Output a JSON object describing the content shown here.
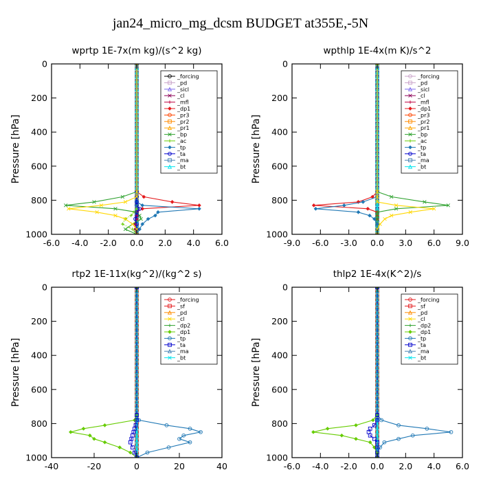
{
  "figure": {
    "title": "jan24_micro_mg_dcsm  BUDGET at355E,-5N"
  },
  "chart_data": [
    {
      "type": "line",
      "title": "wprtp  1E-7x(m kg)/(s^2 kg)",
      "ylabel": "Pressure [hPa]",
      "xlim": [
        -6,
        6
      ],
      "ylim": [
        1000,
        0
      ],
      "xticks": [
        "-6.0",
        "-4.0",
        "-2.0",
        "0.0",
        "2.0",
        "4.0",
        "6.0"
      ],
      "yticks": [
        "0",
        "200",
        "400",
        "600",
        "800",
        "1000"
      ],
      "grid": false,
      "legend_position": "top-right",
      "pressure": [
        750,
        780,
        810,
        830,
        850,
        870,
        890,
        910,
        940,
        970,
        1000
      ],
      "series": [
        {
          "name": "_forcing",
          "color": "#000000",
          "values": [
            0,
            0,
            0,
            0,
            0,
            0,
            0,
            0,
            0,
            0,
            0
          ]
        },
        {
          "name": "_pd",
          "color": "#c8a2c8",
          "values": [
            0,
            0,
            0,
            0,
            0,
            0,
            0,
            0,
            0,
            0,
            0
          ]
        },
        {
          "name": "_sicl",
          "color": "#7b68ee",
          "values": [
            0,
            0,
            0,
            0,
            0,
            0,
            0,
            0,
            0,
            0,
            0
          ]
        },
        {
          "name": "_cl",
          "color": "#8b0057",
          "values": [
            0,
            0,
            0,
            0,
            0,
            0,
            0,
            0,
            0,
            0,
            0
          ]
        },
        {
          "name": "_mfl",
          "color": "#c00040",
          "values": [
            0,
            0,
            0,
            0,
            0,
            0,
            0,
            0,
            0,
            0,
            0
          ]
        },
        {
          "name": "_dp1",
          "color": "#e41a1c",
          "values": [
            0,
            0.5,
            2.5,
            4.4,
            0.4,
            0,
            0,
            0,
            -0.1,
            -0.1,
            0
          ]
        },
        {
          "name": "_pr3",
          "color": "#ff4500",
          "values": [
            0,
            0,
            0,
            0,
            0,
            0,
            0,
            0,
            0,
            0,
            0
          ]
        },
        {
          "name": "_pr2",
          "color": "#ff8c00",
          "values": [
            0,
            0,
            0,
            0,
            0,
            0,
            0,
            0,
            0,
            0,
            0
          ]
        },
        {
          "name": "_pr1",
          "color": "#ffa500",
          "values": [
            0,
            0,
            0,
            0,
            0,
            0,
            0,
            0,
            0,
            0,
            0
          ]
        },
        {
          "name": "_bp",
          "color": "#2ca02c",
          "values": [
            0,
            -1,
            -3,
            -5,
            -1.5,
            0,
            0.2,
            0.3,
            -0.3,
            -0.8,
            0
          ]
        },
        {
          "name": "_ac",
          "color": "#66cc00",
          "values": [
            0,
            0,
            0,
            0,
            0,
            -0.2,
            -0.4,
            -0.8,
            -1,
            -0.3,
            0
          ]
        },
        {
          "name": "_tp",
          "color": "#1f77b4",
          "values": [
            0,
            0,
            0,
            0.4,
            4.4,
            1.5,
            1.3,
            0.8,
            0.4,
            0.2,
            0
          ]
        },
        {
          "name": "_ta",
          "color": "#0000cd",
          "values": [
            0,
            0,
            0,
            0,
            0.2,
            0,
            0,
            -0.1,
            0,
            0,
            0
          ]
        },
        {
          "name": "_ma",
          "color": "#4682b4",
          "values": [
            0,
            0,
            0,
            0,
            0,
            0,
            0,
            0,
            0,
            0,
            0
          ]
        },
        {
          "name": "_bt",
          "color": "#00e5ee",
          "values": [
            0,
            0,
            0,
            0,
            0,
            0,
            0,
            0,
            0,
            0,
            0
          ]
        },
        {
          "name": "",
          "color": "#ffd700",
          "values": [
            0,
            0,
            -0.8,
            -2.5,
            -4.8,
            -2.8,
            -1.5,
            -0.8,
            -0.3,
            0,
            0
          ]
        }
      ]
    },
    {
      "type": "line",
      "title": "wpthlp  1E-4x(m K)/s^2",
      "ylabel": "Pressure [hPa]",
      "xlim": [
        -9,
        9
      ],
      "ylim": [
        1000,
        0
      ],
      "xticks": [
        "-9.0",
        "-6.0",
        "-3.0",
        "0.0",
        "3.0",
        "6.0",
        "9.0"
      ],
      "yticks": [
        "0",
        "200",
        "400",
        "600",
        "800",
        "1000"
      ],
      "grid": false,
      "legend_position": "top-right",
      "pressure": [
        750,
        780,
        810,
        830,
        850,
        870,
        890,
        910,
        940,
        970,
        1000
      ],
      "series": [
        {
          "name": "_forcing",
          "color": "#c8a2c8",
          "values": [
            0,
            0,
            0,
            0,
            0,
            0,
            0,
            0,
            0,
            0,
            0
          ]
        },
        {
          "name": "_pd",
          "color": "#c8a2c8",
          "values": [
            0,
            0,
            0,
            0,
            0,
            0,
            0,
            0,
            0,
            0,
            0
          ]
        },
        {
          "name": "_sicl",
          "color": "#7b68ee",
          "values": [
            0,
            0,
            0,
            0,
            0,
            0,
            0,
            0,
            0,
            0,
            0
          ]
        },
        {
          "name": "_cl",
          "color": "#8b0057",
          "values": [
            0,
            0,
            0,
            0,
            0,
            0,
            0,
            0,
            0,
            0,
            0
          ]
        },
        {
          "name": "_mfl",
          "color": "#c00040",
          "values": [
            0,
            0,
            0,
            0,
            0,
            0,
            0,
            0,
            0,
            0,
            0
          ]
        },
        {
          "name": "_dp1",
          "color": "#e41a1c",
          "values": [
            0,
            -0.5,
            -2,
            -6.7,
            -1,
            0,
            0,
            0,
            0,
            0,
            0
          ]
        },
        {
          "name": "_pr3",
          "color": "#ff4500",
          "values": [
            0,
            0,
            0,
            0,
            0,
            0,
            0,
            0,
            0,
            0,
            0
          ]
        },
        {
          "name": "_pr2",
          "color": "#ff8c00",
          "values": [
            0,
            0,
            0,
            0,
            0,
            0,
            0,
            0,
            0,
            0,
            0
          ]
        },
        {
          "name": "_pr1",
          "color": "#ffa500",
          "values": [
            0,
            0,
            0,
            0,
            0,
            0,
            0,
            0,
            0,
            0,
            0
          ]
        },
        {
          "name": "_bp",
          "color": "#2ca02c",
          "values": [
            0,
            1.5,
            5,
            7.5,
            2,
            0,
            0,
            0,
            0,
            0,
            0
          ]
        },
        {
          "name": "_ac",
          "color": "#66cc00",
          "values": [
            0,
            0,
            0,
            0,
            0,
            0,
            0,
            0,
            0,
            0,
            0
          ]
        },
        {
          "name": "_tp",
          "color": "#1f77b4",
          "values": [
            0,
            0,
            -1.5,
            -3.5,
            -6.5,
            -2,
            -0.8,
            -0.3,
            0,
            0,
            0
          ]
        },
        {
          "name": "_ta",
          "color": "#0000cd",
          "values": [
            0,
            0,
            0,
            0,
            0,
            0,
            0,
            0,
            0,
            0,
            0
          ]
        },
        {
          "name": "_ma",
          "color": "#4682b4",
          "values": [
            0,
            0,
            0,
            0,
            0,
            0,
            0,
            0,
            0,
            0,
            0
          ]
        },
        {
          "name": "_bt",
          "color": "#00e5ee",
          "values": [
            0,
            0,
            0,
            0,
            0,
            0,
            0,
            0,
            0,
            0,
            0
          ]
        },
        {
          "name": "",
          "color": "#ffd700",
          "values": [
            0,
            0,
            0,
            2,
            6,
            3.5,
            1.5,
            0.8,
            0.3,
            0,
            0
          ]
        }
      ]
    },
    {
      "type": "line",
      "title": "rtp2  1E-11x(kg^2)/(kg^2 s)",
      "ylabel": "Pressure [hPa]",
      "xlim": [
        -40,
        40
      ],
      "ylim": [
        1000,
        0
      ],
      "xticks": [
        "-40",
        "-20",
        "0",
        "20",
        "40"
      ],
      "yticks": [
        "0",
        "200",
        "400",
        "600",
        "800",
        "1000"
      ],
      "grid": false,
      "legend_position": "top-right",
      "pressure": [
        750,
        780,
        810,
        830,
        850,
        870,
        890,
        910,
        940,
        970,
        1000
      ],
      "series": [
        {
          "name": "_forcing",
          "color": "#e41a1c",
          "values": [
            0,
            0,
            0,
            0,
            0,
            0,
            0,
            0,
            0,
            0,
            0
          ]
        },
        {
          "name": "_sf",
          "color": "#e41a1c",
          "values": [
            0,
            0,
            0,
            0,
            0,
            0,
            0,
            0,
            0,
            0,
            0
          ]
        },
        {
          "name": "_pd",
          "color": "#ff8c00",
          "values": [
            0,
            0,
            0,
            0,
            0,
            0,
            0,
            0,
            0,
            0,
            0
          ]
        },
        {
          "name": "_cl",
          "color": "#ffd700",
          "values": [
            0,
            0,
            0,
            0,
            0,
            0,
            0,
            0,
            0,
            0,
            0
          ]
        },
        {
          "name": "_dp2",
          "color": "#2ca02c",
          "values": [
            0,
            0,
            0,
            0,
            0,
            0,
            0,
            0,
            0,
            0,
            0
          ]
        },
        {
          "name": "_dp1",
          "color": "#66cc00",
          "values": [
            0,
            -1,
            -15,
            -25,
            -31,
            -22,
            -20,
            -15,
            -8,
            -3,
            0
          ]
        },
        {
          "name": "_tp",
          "color": "#1f77b4",
          "values": [
            0,
            1,
            14,
            25,
            30,
            22,
            20,
            25,
            15,
            5,
            0
          ]
        },
        {
          "name": "_ta",
          "color": "#0000cd",
          "values": [
            0,
            0,
            -0.5,
            -1,
            -1.5,
            -2,
            -2.5,
            -3,
            -2,
            -1,
            0
          ]
        },
        {
          "name": "_ma",
          "color": "#4682b4",
          "values": [
            0,
            0,
            0,
            0,
            0,
            0,
            0,
            0,
            0,
            0,
            0
          ]
        },
        {
          "name": "_bt",
          "color": "#00e5ee",
          "values": [
            0,
            0,
            0,
            0,
            0,
            0,
            0,
            0,
            0,
            0,
            0
          ]
        }
      ]
    },
    {
      "type": "line",
      "title": "thlp2  1E-4x(K^2)/s",
      "ylabel": "Pressure [hPa]",
      "xlim": [
        -6,
        6
      ],
      "ylim": [
        1000,
        0
      ],
      "xticks": [
        "-6.0",
        "-4.0",
        "-2.0",
        "0.0",
        "2.0",
        "4.0",
        "6.0"
      ],
      "yticks": [
        "0",
        "200",
        "400",
        "600",
        "800",
        "1000"
      ],
      "grid": false,
      "legend_position": "top-right",
      "pressure": [
        750,
        780,
        810,
        830,
        850,
        870,
        890,
        910,
        940,
        970,
        1000
      ],
      "series": [
        {
          "name": "_forcing",
          "color": "#e41a1c",
          "values": [
            0,
            0,
            0,
            0,
            0,
            0,
            0,
            0,
            0,
            0,
            0
          ]
        },
        {
          "name": "_sf",
          "color": "#e41a1c",
          "values": [
            0,
            0,
            0,
            0,
            0,
            0,
            0,
            0,
            0,
            0,
            0
          ]
        },
        {
          "name": "_pd",
          "color": "#ff8c00",
          "values": [
            0,
            0,
            0,
            0,
            0,
            0,
            0,
            0,
            0,
            0,
            0
          ]
        },
        {
          "name": "_cl",
          "color": "#ffd700",
          "values": [
            0,
            0,
            0,
            0,
            0,
            0,
            0,
            0,
            0,
            0,
            0
          ]
        },
        {
          "name": "_dp2",
          "color": "#2ca02c",
          "values": [
            0,
            0,
            0,
            0,
            0,
            0,
            0,
            0,
            0,
            0,
            0
          ]
        },
        {
          "name": "_dp1",
          "color": "#66cc00",
          "values": [
            0,
            -0.3,
            -1.5,
            -3.5,
            -4.5,
            -2.5,
            -1.5,
            -0.5,
            -0.2,
            0,
            0
          ]
        },
        {
          "name": "_tp",
          "color": "#1f77b4",
          "values": [
            0,
            0.3,
            1.5,
            3.5,
            5.2,
            2.5,
            1.5,
            0.5,
            0.2,
            0,
            0
          ]
        },
        {
          "name": "_ta",
          "color": "#0000cd",
          "values": [
            0,
            0,
            -0.2,
            -0.5,
            -0.6,
            -0.5,
            -0.2,
            0,
            0,
            0,
            0
          ]
        },
        {
          "name": "_ma",
          "color": "#4682b4",
          "values": [
            0,
            0,
            0,
            0,
            0,
            0,
            0,
            0,
            0,
            0,
            0
          ]
        },
        {
          "name": "_bt",
          "color": "#00e5ee",
          "values": [
            0,
            0,
            0,
            0,
            0,
            0,
            0,
            0,
            0,
            0,
            0
          ]
        }
      ]
    }
  ]
}
